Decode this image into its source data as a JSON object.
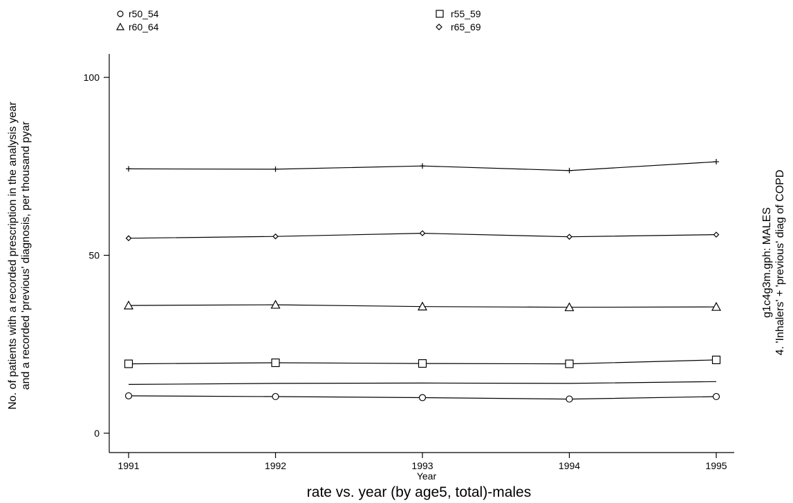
{
  "chart_data": {
    "type": "line",
    "title": "rate vs. year (by age5, total)-males",
    "xlabel": "Year",
    "ylabel_line1": "No. of patients with a recorded prescription in the analysis year",
    "ylabel_line2": "and a recorded 'previous' diagnosis, per thousand pyar",
    "side_note_line1": "g1c4g3m.gph: MALES",
    "side_note_line2": "4.  'Inhalers' + 'previous' diag of COPD",
    "x": [
      1991,
      1992,
      1993,
      1994,
      1995
    ],
    "x_ticks": [
      "1991",
      "1992",
      "1993",
      "1994",
      "1995"
    ],
    "y_ticks": [
      "0",
      "50",
      "100"
    ],
    "y_tick_values": [
      0,
      50,
      100
    ],
    "xlim": [
      1991,
      1995
    ],
    "ylim": [
      0,
      100
    ],
    "grid": false,
    "legend_position": "top",
    "series": [
      {
        "name": "r50_54",
        "marker": "circle",
        "values": [
          10.5,
          10.3,
          10.0,
          9.6,
          10.3
        ]
      },
      {
        "name": "r55_59",
        "marker": "square",
        "values": [
          19.5,
          19.8,
          19.6,
          19.5,
          20.6
        ]
      },
      {
        "name": "r60_64",
        "marker": "triangle",
        "values": [
          35.9,
          36.1,
          35.6,
          35.4,
          35.5
        ]
      },
      {
        "name": "r65_69",
        "marker": "diamond",
        "values": [
          54.8,
          55.3,
          56.2,
          55.2,
          55.8
        ]
      },
      {
        "marker": "plus",
        "values": [
          74.3,
          74.2,
          75.1,
          73.8,
          76.3
        ]
      },
      {
        "marker": "none",
        "values": [
          13.7,
          14.0,
          14.1,
          14.0,
          14.5
        ]
      }
    ]
  }
}
